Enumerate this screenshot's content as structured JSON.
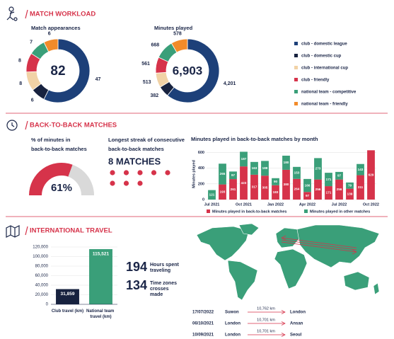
{
  "sections": [
    {
      "title": "MATCH WORKLOAD"
    },
    {
      "title": "BACK-TO-BACK MATCHES"
    },
    {
      "title": "INTERNATIONAL TRAVEL"
    }
  ],
  "chart_data": [
    {
      "type": "donut",
      "title": "Match appearances",
      "total": 82,
      "categories": [
        "club - domestic league",
        "club - domestic cup",
        "club - international cup",
        "club - friendly",
        "national team - competitive",
        "national team - friendly"
      ],
      "colors": [
        "#1d4079",
        "#17223f",
        "#f1d2a6",
        "#d6334a",
        "#3a9f79",
        "#f28b2a"
      ],
      "values": [
        47,
        6,
        8,
        8,
        7,
        6
      ]
    },
    {
      "type": "donut",
      "title": "Minutes played",
      "total": {
        "value": 6903,
        "label": "6,903"
      },
      "values": [
        4201,
        382,
        513,
        561,
        668,
        578
      ],
      "value_labels": [
        "4,201",
        "382",
        "513",
        "561",
        "668",
        "578"
      ]
    },
    {
      "type": "gauge",
      "title": "% of minutes in back-to-back matches",
      "value": 61,
      "value_label": "61%",
      "colors": [
        "#d6334a",
        "#d9d9d9"
      ]
    },
    {
      "type": "stacked_bar",
      "title": "Minutes played in back-to-back matches by month",
      "y_label": "Minutes played",
      "categories": [
        "Jul 2021",
        null,
        null,
        "Oct 2021",
        null,
        null,
        "Jan 2022",
        null,
        null,
        "Apr 2022",
        null,
        null,
        "Jul 2022",
        null,
        null,
        "Oct 2022"
      ],
      "series": [
        {
          "name": "Minutes played in back-to-back matches",
          "color": "#d6334a",
          "values": [
            0,
            193,
            261,
            423,
            317,
            305,
            183,
            380,
            264,
            97,
            256,
            171,
            256,
            139,
            311,
            629
          ]
        },
        {
          "name": "Minutes played in other matches",
          "color": "#3a9f79",
          "values": [
            121,
            265,
            97,
            187,
            163,
            188,
            90,
            180,
            153,
            166,
            273,
            171,
            97,
            79,
            143,
            0
          ]
        }
      ],
      "ylim": [
        0,
        650
      ],
      "yticks": [
        0,
        200,
        400,
        600
      ],
      "grid": true
    },
    {
      "type": "bar",
      "categories": [
        "Club travel (km)",
        "National team travel (km)"
      ],
      "values": [
        31859,
        115521
      ],
      "value_labels": [
        "31,859",
        "115,521"
      ],
      "colors": [
        "#17223f",
        "#3a9f79"
      ],
      "ylim": [
        0,
        120000
      ],
      "yticks": [
        0,
        {
          "value": 20000,
          "label": "20,000"
        },
        {
          "value": 40000,
          "label": "40,000"
        },
        {
          "value": 60000,
          "label": "60,000"
        },
        {
          "value": 80000,
          "label": "80,000"
        },
        {
          "value": 100000,
          "label": "100,000"
        },
        {
          "value": 120000,
          "label": "120,000"
        }
      ],
      "grid": true
    }
  ],
  "streak": {
    "title": "Longest streak of consecutive back-to-back matches",
    "value": 8,
    "label": "8 MATCHES",
    "color": "#d6334a"
  },
  "travel_stats": [
    {
      "value": 194,
      "label": "Hours spent traveling"
    },
    {
      "value": 134,
      "label": "Time zones crosses made"
    }
  ],
  "trips": [
    {
      "date": "17/07/2022",
      "from": "Suwon",
      "distance": "10,762 km",
      "to": "London"
    },
    {
      "date": "06/10/2021",
      "from": "London",
      "distance": "10,701 km",
      "to": "Ansan"
    },
    {
      "date": "10/09/2021",
      "from": "London",
      "distance": "10,701 km",
      "to": "Seoul"
    }
  ]
}
